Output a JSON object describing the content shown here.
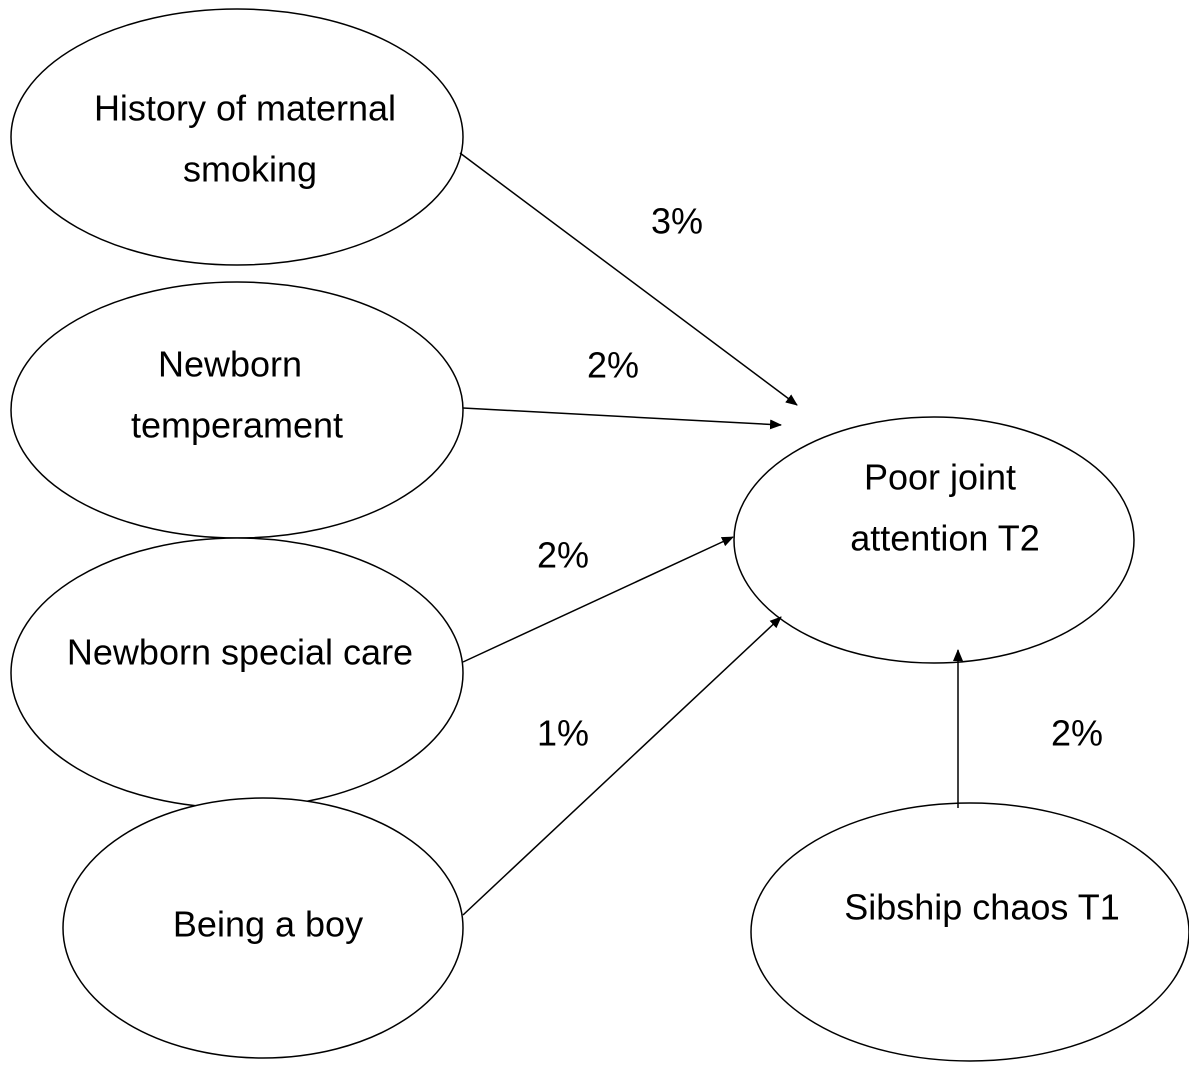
{
  "nodes": [
    {
      "lines": [
        "History of maternal",
        "smoking"
      ]
    },
    {
      "lines": [
        "Newborn",
        "temperament"
      ]
    },
    {
      "lines": [
        "Newborn special care"
      ]
    },
    {
      "lines": [
        "Being a boy"
      ]
    },
    {
      "lines": [
        "Poor joint",
        "attention T2"
      ]
    },
    {
      "lines": [
        "Sibship chaos T1"
      ]
    }
  ],
  "edges": [
    {
      "label": "3%"
    },
    {
      "label": "2%"
    },
    {
      "label": "2%"
    },
    {
      "label": "1%"
    },
    {
      "label": "2%"
    }
  ]
}
